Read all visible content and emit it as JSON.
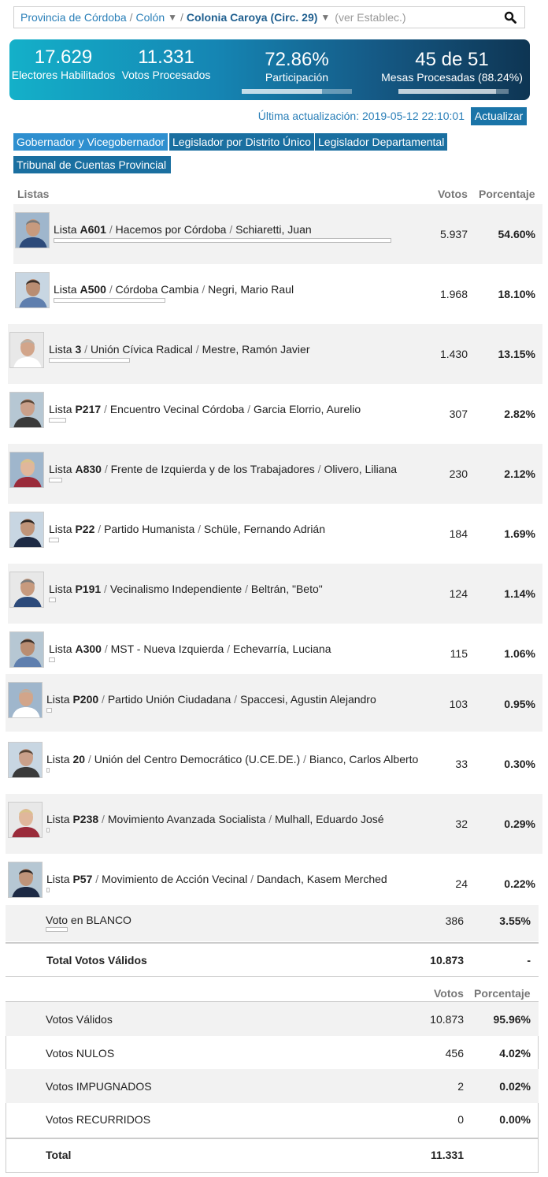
{
  "breadcrumb": {
    "province": "Provincia de Córdoba",
    "department": "Colón",
    "locality": "Colonia Caroya (Circ. 29)",
    "establishments_link": "(ver Establec.)",
    "separator": "/",
    "dropdown_glyph": "▼"
  },
  "banner": {
    "electores_value": "17.629",
    "electores_label": "Electores Habilitados",
    "votos_value": "11.331",
    "votos_label": "Votos Procesados",
    "participacion_value": "72.86%",
    "participacion_label": "Participación",
    "participacion_fraction": 0.7286,
    "mesas_value": "45 de 51",
    "mesas_label": "Mesas Procesadas (88.24%)",
    "mesas_fraction": 0.8824
  },
  "update": {
    "text": "Última actualización: 2019-05-12 22:10:01",
    "button_label": "Actualizar"
  },
  "tabs": [
    {
      "label": "Gobernador y Vicegobernador",
      "active": true
    },
    {
      "label": "Legislador por Distrito Único",
      "active": false
    },
    {
      "label": "Legislador Departamental",
      "active": false
    },
    {
      "label": "Tribunal de Cuentas Provincial",
      "active": false
    }
  ],
  "table_headers": {
    "listas": "Listas",
    "votos": "Votos",
    "porcentaje": "Porcentaje"
  },
  "candidates": [
    {
      "prefix": "Lista",
      "code": "A601",
      "party": "Hacemos por Córdoba",
      "candidate": "Schiaretti, Juan",
      "votes": "5.937",
      "pct": "54.60%",
      "share": 0.546
    },
    {
      "prefix": "Lista",
      "code": "A500",
      "party": "Córdoba Cambia",
      "candidate": "Negri, Mario Raul",
      "votes": "1.968",
      "pct": "18.10%",
      "share": 0.181
    },
    {
      "prefix": "Lista",
      "code": "3",
      "party": "Unión Cívica Radical",
      "candidate": "Mestre, Ramón Javier",
      "votes": "1.430",
      "pct": "13.15%",
      "share": 0.1315
    },
    {
      "prefix": "Lista",
      "code": "P217",
      "party": "Encuentro Vecinal Córdoba",
      "candidate": "Garcia Elorrio, Aurelio",
      "votes": "307",
      "pct": "2.82%",
      "share": 0.0282
    },
    {
      "prefix": "Lista",
      "code": "A830",
      "party": "Frente de Izquierda y de los Trabajadores",
      "candidate": "Olivero, Liliana",
      "votes": "230",
      "pct": "2.12%",
      "share": 0.0212
    },
    {
      "prefix": "Lista",
      "code": "P22",
      "party": "Partido Humanista",
      "candidate": "Schüle, Fernando Adrián",
      "votes": "184",
      "pct": "1.69%",
      "share": 0.0169
    },
    {
      "prefix": "Lista",
      "code": "P191",
      "party": "Vecinalismo Independiente",
      "candidate": "Beltrán, \"Beto\"",
      "votes": "124",
      "pct": "1.14%",
      "share": 0.0114
    },
    {
      "prefix": "Lista",
      "code": "A300",
      "party": "MST - Nueva Izquierda",
      "candidate": "Echevarría, Luciana",
      "votes": "115",
      "pct": "1.06%",
      "share": 0.0106
    },
    {
      "prefix": "Lista",
      "code": "P200",
      "party": "Partido Unión Ciudadana",
      "candidate": "Spaccesi, Agustin Alejandro",
      "votes": "103",
      "pct": "0.95%",
      "share": 0.0095
    },
    {
      "prefix": "Lista",
      "code": "20",
      "party": "Unión del Centro Democrático (U.CE.DE.)",
      "candidate": "Bianco, Carlos Alberto",
      "votes": "33",
      "pct": "0.30%",
      "share": 0.003
    },
    {
      "prefix": "Lista",
      "code": "P238",
      "party": "Movimiento Avanzada Socialista",
      "candidate": "Mulhall, Eduardo José",
      "votes": "32",
      "pct": "0.29%",
      "share": 0.0029
    },
    {
      "prefix": "Lista",
      "code": "P57",
      "party": "Movimiento de Acción Vecinal",
      "candidate": "Dandach, Kasem Merched",
      "votes": "24",
      "pct": "0.22%",
      "share": 0.0022
    }
  ],
  "blank_vote": {
    "label": "Voto en BLANCO",
    "votes": "386",
    "pct": "3.55%",
    "share": 0.0355
  },
  "valid_total": {
    "label": "Total Votos Válidos",
    "votes": "10.873",
    "pct": "-"
  },
  "summary_headers": {
    "votos": "Votos",
    "porcentaje": "Porcentaje"
  },
  "summary": [
    {
      "label": "Votos Válidos",
      "votes": "10.873",
      "pct": "95.96%"
    },
    {
      "label": "Votos NULOS",
      "votes": "456",
      "pct": "4.02%"
    },
    {
      "label": "Votos IMPUGNADOS",
      "votes": "2",
      "pct": "0.02%"
    },
    {
      "label": "Votos RECURRIDOS",
      "votes": "0",
      "pct": "0.00%"
    }
  ],
  "grand_total": {
    "label": "Total",
    "votes": "11.331"
  }
}
